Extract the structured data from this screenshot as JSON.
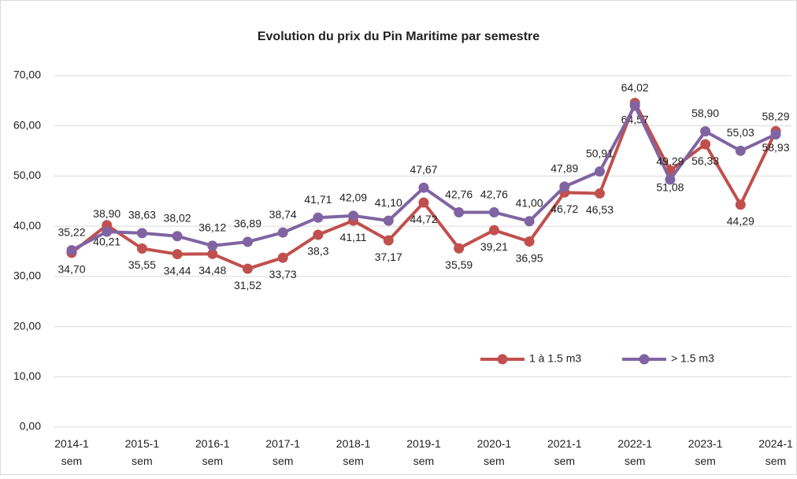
{
  "chart_data": {
    "type": "line",
    "title": "Evolution du prix du Pin Maritime par semestre",
    "categories": [
      "2014-1 sem",
      null,
      "2015-1 sem",
      null,
      "2016-1 sem",
      null,
      "2017-1 sem",
      null,
      "2018-1 sem",
      null,
      "2019-1 sem",
      null,
      "2020-1 sem",
      null,
      "2021-1 sem",
      null,
      "2022-1 sem",
      null,
      "2023-1 sem",
      null,
      "2024-1 sem"
    ],
    "series": [
      {
        "name": "1 à 1.5 m3",
        "color": "#c0504d",
        "values": [
          34.7,
          40.21,
          35.55,
          34.44,
          34.48,
          31.52,
          33.73,
          38.3,
          41.11,
          37.17,
          44.72,
          35.59,
          39.21,
          36.95,
          46.72,
          46.53,
          64.57,
          51.08,
          56.33,
          44.29,
          58.93
        ],
        "value_labels": [
          "34,70",
          "40,21",
          "35,55",
          "34,44",
          "34,48",
          "31,52",
          "33,73",
          "38,3",
          "41,11",
          "37,17",
          "44,72",
          "35,59",
          "39,21",
          "36,95",
          "46,72",
          "46,53",
          "64,57",
          "51,08",
          "56,33",
          "44,29",
          "58,93"
        ]
      },
      {
        "name": "> 1.5 m3",
        "color": "#8064a2",
        "values": [
          35.22,
          38.9,
          38.63,
          38.02,
          36.12,
          36.89,
          38.74,
          41.71,
          42.09,
          41.1,
          47.67,
          42.76,
          42.76,
          41.0,
          47.89,
          50.91,
          64.02,
          49.29,
          58.9,
          55.03,
          58.29
        ],
        "value_labels": [
          "35,22",
          "38,90",
          "38,63",
          "38,02",
          "36,12",
          "36,89",
          "38,74",
          "41,71",
          "42,09",
          "41,10",
          "47,67",
          "42,76",
          "42,76",
          "41,00",
          "47,89",
          "50,91",
          "64,02",
          "49,29",
          "58,90",
          "55,03",
          "58,29"
        ]
      }
    ],
    "ylim": [
      0,
      70
    ],
    "yticks": [
      {
        "value": 0,
        "label": "0,00"
      },
      {
        "value": 10,
        "label": "10,00"
      },
      {
        "value": 20,
        "label": "20,00"
      },
      {
        "value": 30,
        "label": "30,00"
      },
      {
        "value": 40,
        "label": "40,00"
      },
      {
        "value": 50,
        "label": "50,00"
      },
      {
        "value": 60,
        "label": "60,00"
      },
      {
        "value": 70,
        "label": "70,00"
      }
    ],
    "grid": true,
    "legend": "lower-right"
  }
}
